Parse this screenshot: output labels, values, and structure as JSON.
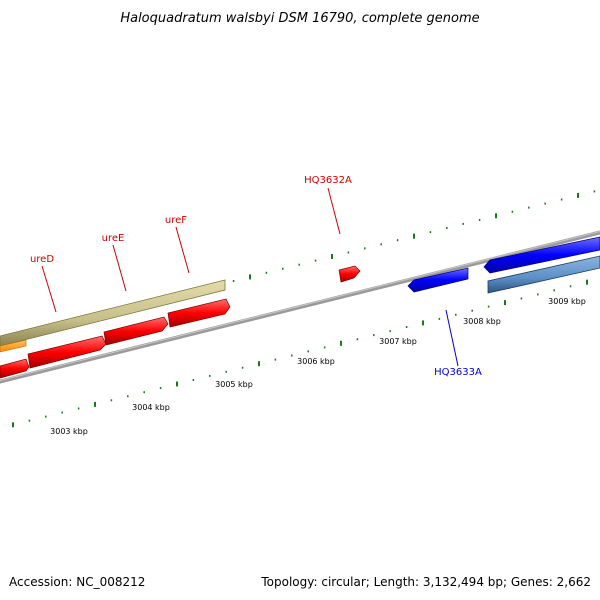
{
  "title": "Haloquadratum walsbyi DSM 16790, complete genome",
  "footer": {
    "accession": "Accession: NC_008212",
    "topology": "Topology: circular; Length: 3,132,494 bp; Genes: 2,662"
  },
  "scale_labels": [
    "3003 kbp",
    "3004 kbp",
    "3005 kbp",
    "3006 kbp",
    "3007 kbp",
    "3008 kbp",
    "3009 kbp"
  ],
  "gene_labels": {
    "ureD": "ureD",
    "ureE": "ureE",
    "ureF": "ureF",
    "HQ3632A": "HQ3632A",
    "HQ3633A": "HQ3633A"
  },
  "colors": {
    "backbone": "#808080",
    "forward_gene": "#ff0000",
    "reverse_gene": "#0000ff",
    "khaki_feature": "#c8c08a",
    "steelblue_feature": "#5b8fc7",
    "orange_feature": "#ff9900",
    "tick": "#1a7a1a",
    "label_red": "#cc0000",
    "label_blue": "#0000cc"
  }
}
